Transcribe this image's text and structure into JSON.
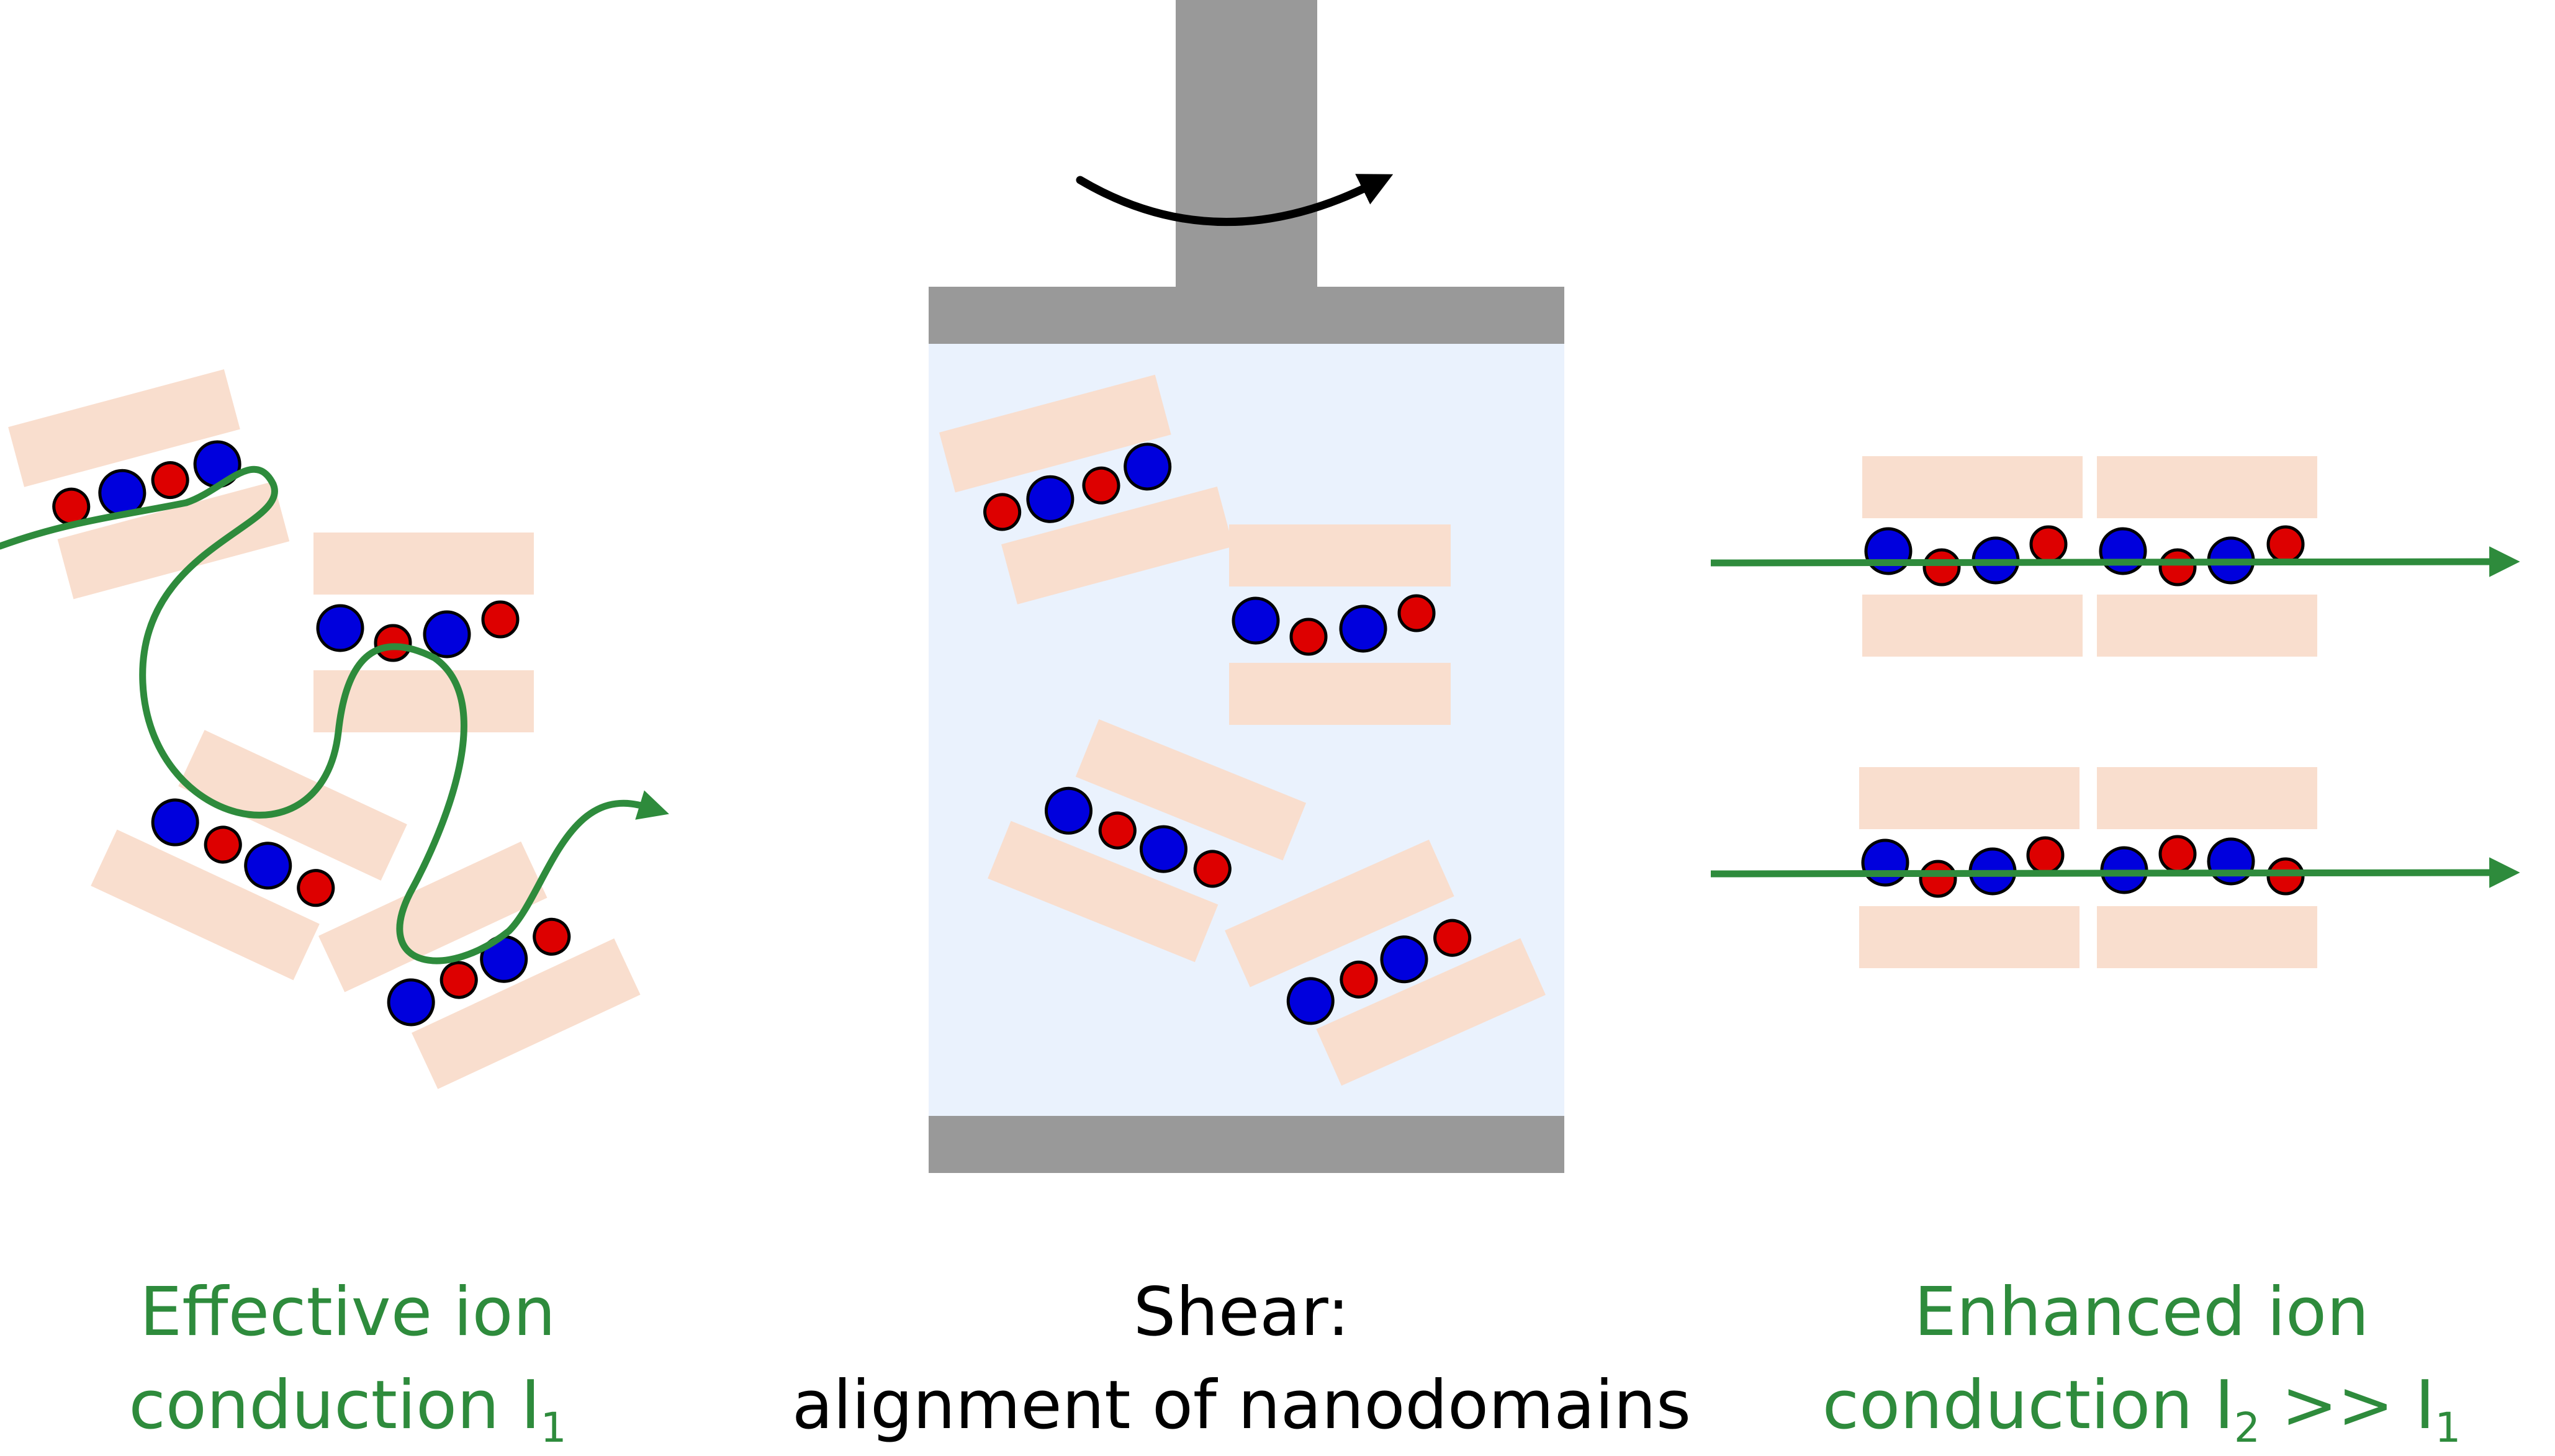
{
  "colors": {
    "lamella": "#f9dece",
    "blue_ion": "#0000dd",
    "red_ion": "#dd0000",
    "path_green": "#2e8b3c",
    "rheometer_gray": "#999999",
    "sample_fill": "#eaf2fd",
    "rotation_arrow": "#000000"
  },
  "panels": {
    "left": {
      "state": "random nanodomains",
      "caption_line1": "Effective ion",
      "caption_line2_prefix": "conduction I",
      "caption_line2_sub": "1"
    },
    "middle": {
      "state": "rheometer shear cell",
      "caption_line1": "Shear:",
      "caption_line2": "alignment of nanodomains"
    },
    "right": {
      "state": "aligned nanodomains",
      "caption_line1": "Enhanced ion",
      "caption_line2_prefix": "conduction I",
      "caption_line2_sub_a": "2",
      "caption_line2_mid": " >> I",
      "caption_line2_sub_b": "1"
    }
  },
  "icons": [
    "rotation-arrow-icon",
    "conduction-path-arrow-icon"
  ]
}
